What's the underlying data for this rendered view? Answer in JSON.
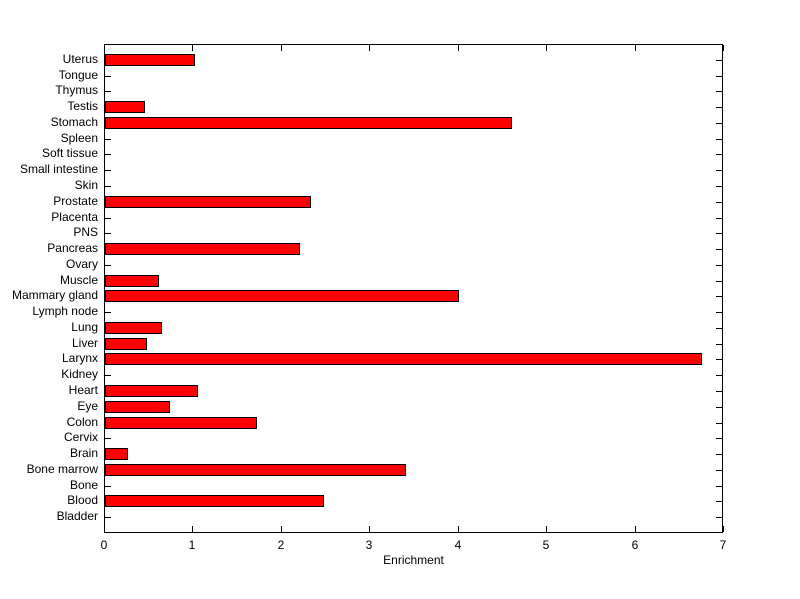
{
  "chart_data": {
    "type": "bar",
    "orientation": "horizontal",
    "title": "",
    "xlabel": "Enrichment",
    "ylabel": "",
    "xlim": [
      0,
      7
    ],
    "xticks": [
      "0",
      "1",
      "2",
      "3",
      "4",
      "5",
      "6",
      "7"
    ],
    "grid": false,
    "legend": null,
    "bar_color": "#ff0000",
    "bar_edge_color": "#000000",
    "background_color": "#ffffff",
    "axis_color": "#000000",
    "categories": [
      "Uterus",
      "Tongue",
      "Thymus",
      "Testis",
      "Stomach",
      "Spleen",
      "Soft tissue",
      "Small intestine",
      "Skin",
      "Prostate",
      "Placenta",
      "PNS",
      "Pancreas",
      "Ovary",
      "Muscle",
      "Mammary gland",
      "Lymph node",
      "Lung",
      "Liver",
      "Larynx",
      "Kidney",
      "Heart",
      "Eye",
      "Colon",
      "Cervix",
      "Brain",
      "Bone marrow",
      "Bone",
      "Blood",
      "Bladder"
    ],
    "values": [
      1.02,
      0,
      0,
      0.45,
      4.6,
      0,
      0,
      0,
      0,
      2.33,
      0,
      0,
      2.2,
      0,
      0.61,
      4.0,
      0,
      0.65,
      0.47,
      6.75,
      0,
      1.05,
      0.74,
      1.72,
      0,
      0.26,
      3.4,
      0,
      2.48,
      0
    ]
  }
}
